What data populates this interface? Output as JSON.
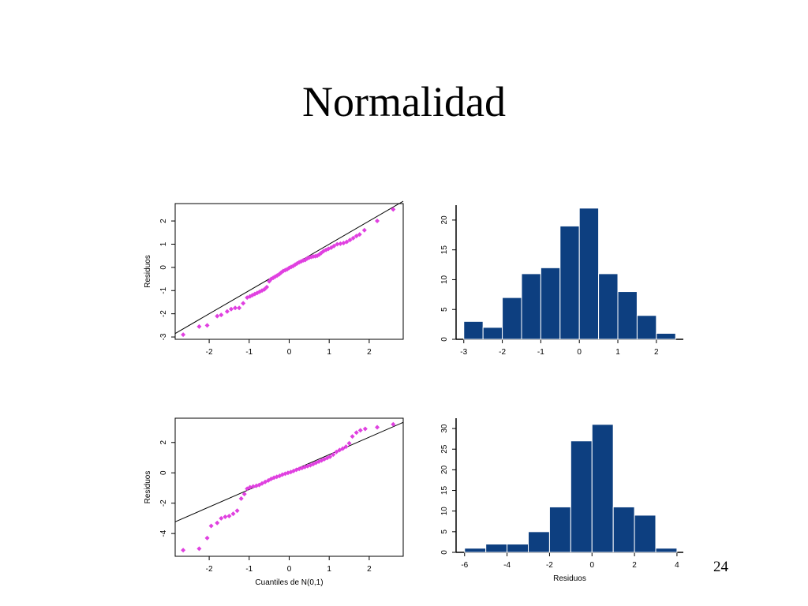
{
  "slide": {
    "title": "Normalidad",
    "page_number": "24"
  },
  "chart_data": [
    {
      "type": "scatter",
      "subtype": "qq-plot",
      "ylabel": "Residuos",
      "xlabel": "",
      "xlim": [
        -2.85,
        2.85
      ],
      "ylim": [
        -3.1,
        2.75
      ],
      "xticks": [
        -2,
        -1,
        0,
        1,
        2
      ],
      "yticks": [
        -3,
        -2,
        -1,
        0,
        1,
        2
      ],
      "point_color": "#e040e0",
      "reference_line": {
        "slope": 1.0,
        "intercept": 0.0
      },
      "points": [
        [
          -2.65,
          -2.9
        ],
        [
          -2.25,
          -2.55
        ],
        [
          -2.05,
          -2.5
        ],
        [
          -1.8,
          -2.1
        ],
        [
          -1.7,
          -2.05
        ],
        [
          -1.55,
          -1.9
        ],
        [
          -1.45,
          -1.8
        ],
        [
          -1.35,
          -1.75
        ],
        [
          -1.25,
          -1.75
        ],
        [
          -1.15,
          -1.55
        ],
        [
          -1.05,
          -1.3
        ],
        [
          -0.98,
          -1.25
        ],
        [
          -0.92,
          -1.2
        ],
        [
          -0.86,
          -1.15
        ],
        [
          -0.8,
          -1.1
        ],
        [
          -0.74,
          -1.05
        ],
        [
          -0.68,
          -1.0
        ],
        [
          -0.62,
          -0.95
        ],
        [
          -0.56,
          -0.85
        ],
        [
          -0.5,
          -0.6
        ],
        [
          -0.45,
          -0.5
        ],
        [
          -0.4,
          -0.45
        ],
        [
          -0.35,
          -0.4
        ],
        [
          -0.3,
          -0.35
        ],
        [
          -0.25,
          -0.3
        ],
        [
          -0.2,
          -0.22
        ],
        [
          -0.15,
          -0.16
        ],
        [
          -0.1,
          -0.12
        ],
        [
          -0.05,
          -0.08
        ],
        [
          0.0,
          -0.02
        ],
        [
          0.05,
          0.02
        ],
        [
          0.1,
          0.06
        ],
        [
          0.15,
          0.12
        ],
        [
          0.2,
          0.17
        ],
        [
          0.25,
          0.22
        ],
        [
          0.3,
          0.26
        ],
        [
          0.35,
          0.3
        ],
        [
          0.4,
          0.32
        ],
        [
          0.45,
          0.38
        ],
        [
          0.5,
          0.42
        ],
        [
          0.55,
          0.45
        ],
        [
          0.6,
          0.47
        ],
        [
          0.65,
          0.48
        ],
        [
          0.7,
          0.5
        ],
        [
          0.75,
          0.55
        ],
        [
          0.8,
          0.62
        ],
        [
          0.86,
          0.7
        ],
        [
          0.92,
          0.75
        ],
        [
          0.98,
          0.8
        ],
        [
          1.05,
          0.85
        ],
        [
          1.12,
          0.92
        ],
        [
          1.2,
          1.0
        ],
        [
          1.28,
          1.02
        ],
        [
          1.36,
          1.05
        ],
        [
          1.44,
          1.1
        ],
        [
          1.52,
          1.18
        ],
        [
          1.6,
          1.26
        ],
        [
          1.68,
          1.35
        ],
        [
          1.76,
          1.42
        ],
        [
          1.88,
          1.6
        ],
        [
          2.2,
          2.0
        ],
        [
          2.6,
          2.5
        ]
      ]
    },
    {
      "type": "bar",
      "subtype": "histogram",
      "xlabel": "",
      "ylabel": "",
      "xlim": [
        -3.2,
        2.7
      ],
      "ylim": [
        0,
        22.5
      ],
      "xticks": [
        -3,
        -2,
        -1,
        0,
        1,
        2
      ],
      "yticks": [
        0,
        5,
        10,
        15,
        20
      ],
      "bar_color": "#0d3f80",
      "bin_edges": [
        -3.0,
        -2.5,
        -2.0,
        -1.5,
        -1.0,
        -0.5,
        0.0,
        0.5,
        1.0,
        1.5,
        2.0,
        2.5
      ],
      "values": [
        3,
        2,
        7,
        11,
        12,
        19,
        22,
        11,
        8,
        4,
        1
      ]
    },
    {
      "type": "scatter",
      "subtype": "qq-plot",
      "ylabel": "Residuos",
      "xlabel": "Cuantiles de N(0,1)",
      "xlim": [
        -2.85,
        2.85
      ],
      "ylim": [
        -5.5,
        3.6
      ],
      "xticks": [
        -2,
        -1,
        0,
        1,
        2
      ],
      "yticks": [
        -4,
        -2,
        0,
        2
      ],
      "point_color": "#e040e0",
      "reference_line": {
        "slope": 1.15,
        "intercept": 0.05
      },
      "points": [
        [
          -2.65,
          -5.1
        ],
        [
          -2.25,
          -5.0
        ],
        [
          -2.05,
          -4.3
        ],
        [
          -1.95,
          -3.5
        ],
        [
          -1.8,
          -3.3
        ],
        [
          -1.7,
          -3.0
        ],
        [
          -1.6,
          -2.9
        ],
        [
          -1.5,
          -2.85
        ],
        [
          -1.4,
          -2.7
        ],
        [
          -1.3,
          -2.5
        ],
        [
          -1.2,
          -1.7
        ],
        [
          -1.12,
          -1.4
        ],
        [
          -1.05,
          -1.05
        ],
        [
          -0.98,
          -0.95
        ],
        [
          -0.9,
          -0.9
        ],
        [
          -0.82,
          -0.85
        ],
        [
          -0.75,
          -0.8
        ],
        [
          -0.68,
          -0.7
        ],
        [
          -0.6,
          -0.6
        ],
        [
          -0.52,
          -0.5
        ],
        [
          -0.45,
          -0.4
        ],
        [
          -0.38,
          -0.32
        ],
        [
          -0.31,
          -0.26
        ],
        [
          -0.24,
          -0.2
        ],
        [
          -0.17,
          -0.12
        ],
        [
          -0.1,
          -0.06
        ],
        [
          -0.03,
          0.0
        ],
        [
          0.04,
          0.05
        ],
        [
          0.11,
          0.12
        ],
        [
          0.18,
          0.2
        ],
        [
          0.25,
          0.26
        ],
        [
          0.32,
          0.32
        ],
        [
          0.39,
          0.38
        ],
        [
          0.46,
          0.44
        ],
        [
          0.53,
          0.5
        ],
        [
          0.6,
          0.58
        ],
        [
          0.67,
          0.66
        ],
        [
          0.74,
          0.74
        ],
        [
          0.81,
          0.82
        ],
        [
          0.88,
          0.9
        ],
        [
          0.95,
          0.98
        ],
        [
          1.02,
          1.06
        ],
        [
          1.1,
          1.2
        ],
        [
          1.18,
          1.38
        ],
        [
          1.26,
          1.5
        ],
        [
          1.34,
          1.6
        ],
        [
          1.42,
          1.72
        ],
        [
          1.5,
          1.95
        ],
        [
          1.58,
          2.4
        ],
        [
          1.68,
          2.65
        ],
        [
          1.78,
          2.8
        ],
        [
          1.9,
          2.9
        ],
        [
          2.2,
          3.0
        ],
        [
          2.6,
          3.2
        ]
      ]
    },
    {
      "type": "bar",
      "subtype": "histogram",
      "xlabel": "Residuos",
      "ylabel": "",
      "xlim": [
        -6.4,
        4.3
      ],
      "ylim": [
        0,
        32.5
      ],
      "xticks": [
        -6,
        -4,
        -2,
        0,
        2,
        4
      ],
      "yticks": [
        0,
        5,
        10,
        15,
        20,
        25,
        30
      ],
      "bar_color": "#0d3f80",
      "bin_edges": [
        -6,
        -5,
        -4,
        -3,
        -2,
        -1,
        0,
        1,
        2,
        3,
        4
      ],
      "values": [
        1,
        2,
        2,
        5,
        11,
        27,
        31,
        11,
        9,
        1
      ]
    }
  ]
}
